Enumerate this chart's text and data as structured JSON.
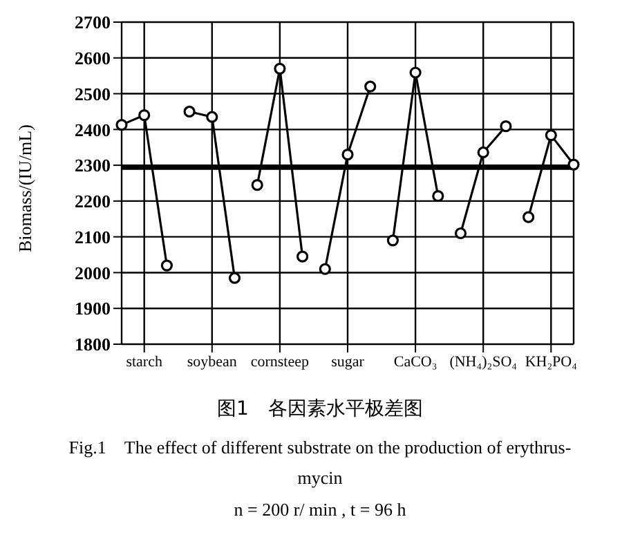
{
  "chart_data": {
    "type": "line",
    "title": "图1　各因素水平极差图",
    "subtitle": "Fig.1　The effect of different substrate on the production of erythrus-mycin",
    "annotations": [
      "n = 200 r/ min , t = 96 h"
    ],
    "ylabel": "Biomass/(IU/mL)",
    "ylim": [
      1800,
      2700
    ],
    "yticks": [
      1800,
      1900,
      2000,
      2100,
      2200,
      2300,
      2400,
      2500,
      2600,
      2700
    ],
    "categories": [
      null,
      "starch",
      null,
      null,
      "soybean",
      null,
      null,
      "cornsteep",
      null,
      null,
      "sugar",
      null,
      null,
      "CaCO₃",
      null,
      null,
      "(NH₄)₂SO₄",
      null,
      null,
      "KH₂PO₄",
      null
    ],
    "grid": true,
    "marker": "circle",
    "line_style": "solid",
    "series": [
      {
        "color": "#000000",
        "values": [
          2413,
          2440,
          2020,
          null,
          null,
          null,
          null,
          null,
          null,
          null,
          null,
          null,
          null,
          null,
          null,
          null,
          null,
          null,
          null,
          null,
          null
        ]
      },
      {
        "color": "#000000",
        "values": [
          null,
          null,
          null,
          2450,
          2435,
          1985,
          null,
          null,
          null,
          null,
          null,
          null,
          null,
          null,
          null,
          null,
          null,
          null,
          null,
          null,
          null
        ]
      },
      {
        "color": "#000000",
        "values": [
          null,
          null,
          null,
          null,
          null,
          null,
          2245,
          2570,
          2045,
          null,
          null,
          null,
          null,
          null,
          null,
          null,
          null,
          null,
          null,
          null,
          null
        ]
      },
      {
        "color": "#000000",
        "values": [
          null,
          null,
          null,
          null,
          null,
          null,
          null,
          null,
          null,
          2010,
          2330,
          2520,
          null,
          null,
          null,
          null,
          null,
          null,
          null,
          null,
          null
        ]
      },
      {
        "color": "#000000",
        "values": [
          null,
          null,
          null,
          null,
          null,
          null,
          null,
          null,
          null,
          null,
          null,
          null,
          2090,
          2559,
          2214,
          null,
          null,
          null,
          null,
          null,
          null
        ]
      },
      {
        "color": "#000000",
        "values": [
          null,
          null,
          null,
          null,
          null,
          null,
          null,
          null,
          null,
          null,
          null,
          null,
          null,
          null,
          null,
          2110,
          2336,
          2409,
          null,
          null,
          null
        ]
      },
      {
        "color": "#000000",
        "values": [
          null,
          null,
          null,
          null,
          null,
          null,
          null,
          null,
          null,
          null,
          null,
          null,
          null,
          null,
          null,
          null,
          null,
          null,
          2155,
          2384,
          2302
        ]
      }
    ],
    "ref_lines": [
      {
        "axis": "y",
        "value": 2293,
        "color": "#000000"
      }
    ]
  }
}
